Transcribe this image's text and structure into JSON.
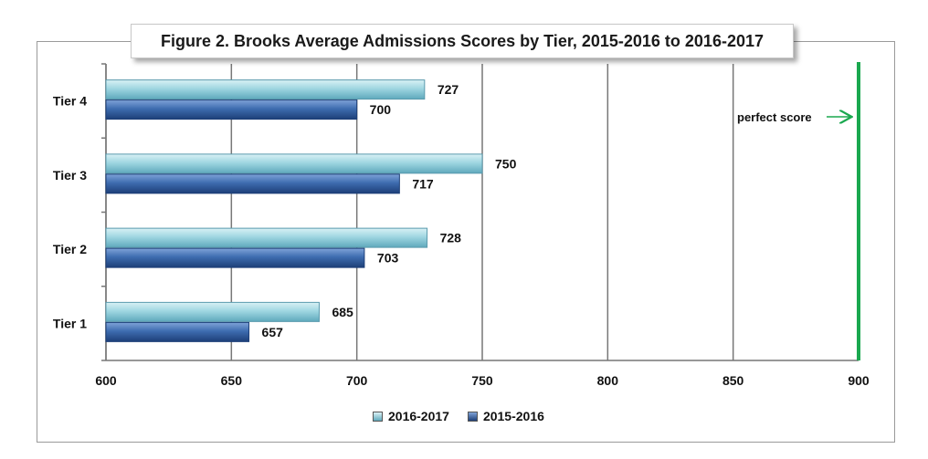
{
  "chart_data": {
    "type": "bar",
    "orientation": "horizontal",
    "title": "Figure 2. Brooks Average Admissions Scores by Tier, 2015-2016 to 2016-2017",
    "categories": [
      "Tier 4",
      "Tier 3",
      "Tier 2",
      "Tier 1"
    ],
    "series": [
      {
        "name": "2016-2017",
        "values": [
          727,
          750,
          728,
          685
        ],
        "color": "#8fd0dc"
      },
      {
        "name": "2015-2016",
        "values": [
          700,
          717,
          703,
          657
        ],
        "color": "#3e6db0"
      }
    ],
    "xlim": [
      600,
      900
    ],
    "xticks": [
      "600",
      "650",
      "700",
      "750",
      "800",
      "850",
      "900"
    ],
    "grid": true,
    "legend_position": "bottom",
    "reference_line": {
      "value": 900,
      "label": "perfect score",
      "color": "#1aa84f"
    }
  }
}
